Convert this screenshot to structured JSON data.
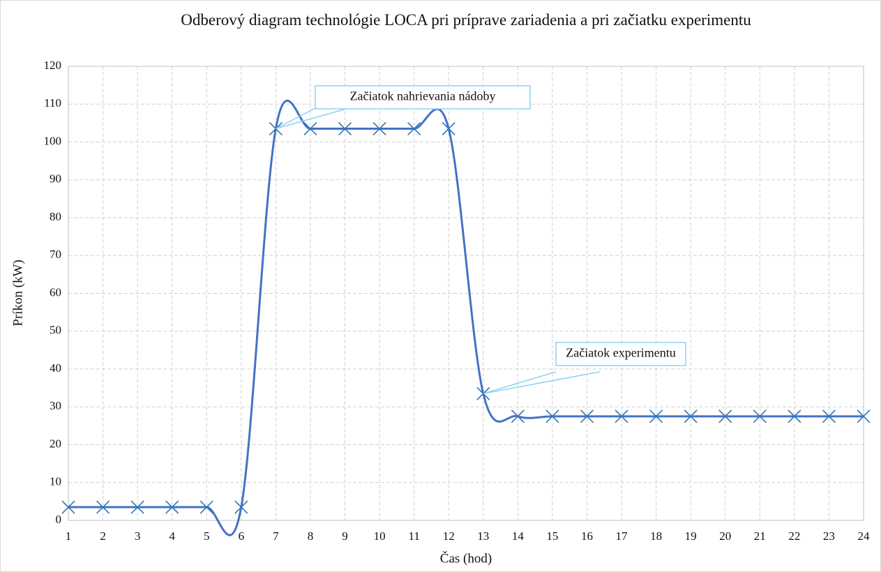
{
  "chart_data": {
    "type": "line",
    "title": "Odberový diagram technológie LOCA pri príprave zariadenia a pri začiatku experimentu",
    "xlabel": "Čas (hod)",
    "ylabel": "Príkon (kW)",
    "x": [
      1,
      2,
      3,
      4,
      5,
      6,
      7,
      8,
      9,
      10,
      11,
      12,
      13,
      14,
      15,
      16,
      17,
      18,
      19,
      20,
      21,
      22,
      23,
      24
    ],
    "series": [
      {
        "name": "Príkon",
        "color": "#4472c4",
        "marker_color": "#2e75b6",
        "values": [
          3.5,
          3.5,
          3.5,
          3.5,
          3.5,
          3.5,
          103.5,
          103.5,
          103.5,
          103.5,
          103.5,
          103.5,
          33.5,
          27.5,
          27.5,
          27.5,
          27.5,
          27.5,
          27.5,
          27.5,
          27.5,
          27.5,
          27.5,
          27.5
        ]
      }
    ],
    "xlim": [
      1,
      24
    ],
    "xticks": [
      1,
      2,
      3,
      4,
      5,
      6,
      7,
      8,
      9,
      10,
      11,
      12,
      13,
      14,
      15,
      16,
      17,
      18,
      19,
      20,
      21,
      22,
      23,
      24
    ],
    "ylim": [
      0,
      120
    ],
    "yticks": [
      0,
      10,
      20,
      30,
      40,
      50,
      60,
      70,
      80,
      90,
      100,
      110,
      120
    ],
    "grid": true,
    "smooth": true,
    "annotations": [
      "Začiatok nahrievania nádoby",
      "Začiatok experimentu"
    ]
  }
}
